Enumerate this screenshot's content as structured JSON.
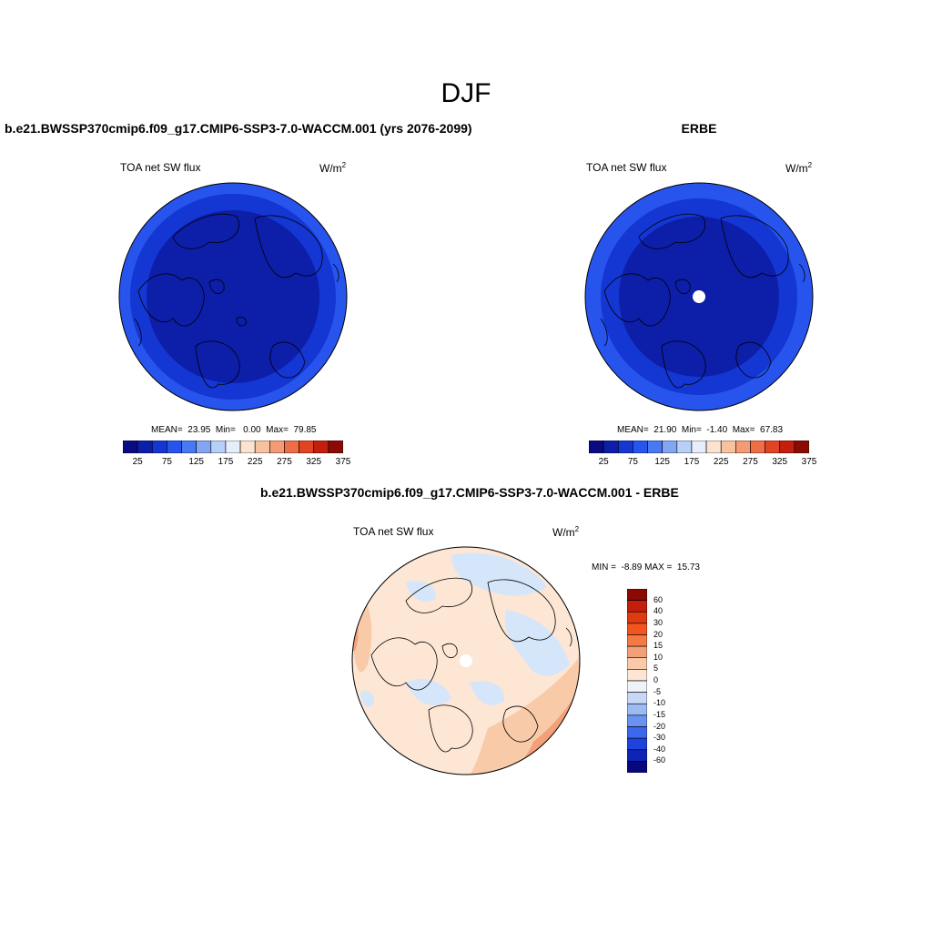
{
  "figure": {
    "season_title": "DJF",
    "model_title": "b.e21.BWSSP370cmip6.f09_g17.CMIP6-SSP3-7.0-WACCM.001 (yrs 2076-2099)",
    "obs_title": "ERBE",
    "diff_title": "b.e21.BWSSP370cmip6.f09_g17.CMIP6-SSP3-7.0-WACCM.001 - ERBE"
  },
  "panels": {
    "model": {
      "variable": "TOA net SW flux",
      "units_base": "W/m",
      "units_exp": "2",
      "stats": "MEAN=  23.95  Min=   0.00  Max=  79.85"
    },
    "obs": {
      "variable": "TOA net SW flux",
      "units_base": "W/m",
      "units_exp": "2",
      "stats": "MEAN=  21.90  Min=  -1.40  Max=  67.83"
    },
    "diff": {
      "variable": "TOA net SW flux",
      "units_base": "W/m",
      "units_exp": "2",
      "stats": "MIN =  -8.89 MAX =  15.73"
    }
  },
  "colorbar_main": {
    "colors": [
      "#0a0a82",
      "#0d1ea8",
      "#1436d2",
      "#2854ee",
      "#4a78f2",
      "#82a6f4",
      "#b8cff7",
      "#e6eefb",
      "#fbe3cf",
      "#f7c2a0",
      "#f49a74",
      "#ef6e48",
      "#e04424",
      "#c41e0e",
      "#8c0a04"
    ],
    "ticks": [
      "25",
      "75",
      "125",
      "175",
      "225",
      "275",
      "325",
      "375"
    ]
  },
  "colorbar_diff": {
    "colors_top_to_bottom": [
      "#8c0a04",
      "#c41e0e",
      "#e03a10",
      "#f4541e",
      "#f47a44",
      "#f3a078",
      "#f8caa8",
      "#fde6d4",
      "#eef3fa",
      "#c7d8f6",
      "#9cbaf4",
      "#6a92f0",
      "#3c68ee",
      "#1c44dc",
      "#0e24b4",
      "#08087e"
    ],
    "ticks": [
      "60",
      "40",
      "30",
      "20",
      "15",
      "10",
      "5",
      "0",
      "-5",
      "-10",
      "-15",
      "-20",
      "-30",
      "-40",
      "-60"
    ]
  },
  "colors": {
    "ocean_dark": "#0d1ea8",
    "ocean_mid": "#1436d2",
    "ocean_edge": "#2854ee",
    "diff_base": "#fde6d4",
    "diff_blue": "#d6e6fa",
    "diff_warm": "#f8caa8",
    "diff_hot": "#f3a078"
  }
}
